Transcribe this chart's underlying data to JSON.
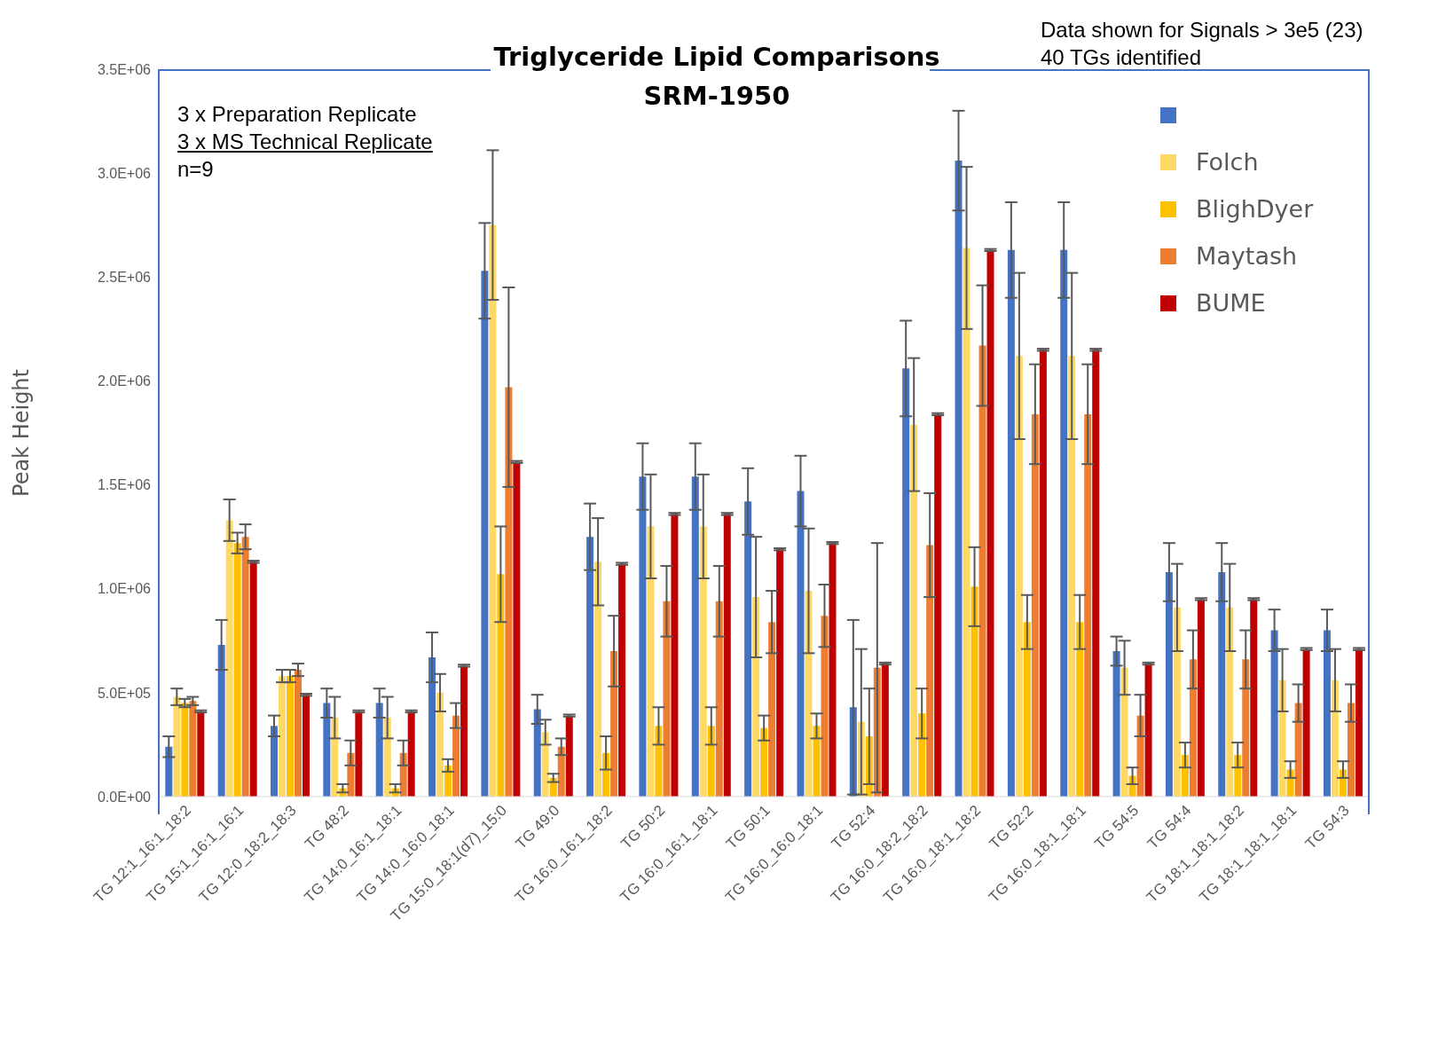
{
  "chart_data": {
    "type": "bar",
    "title": "Triglyceride Lipid Comparisons",
    "subtitle": "SRM-1950",
    "ylabel": "Peak Height",
    "annotations": [
      "3 x Preparation Replicate",
      "3 x MS Technical Replicate",
      "n=9",
      "Data shown for Signals > 3e5 (23)",
      "40 TGs identified"
    ],
    "categories": [
      "TG 12:1_16:1_18:2",
      "TG 15:1_16:1_16:1",
      "TG 12:0_18:2_18:3",
      "TG 48:2",
      "TG 14:0_16:1_18:1",
      "TG 14:0_16:0_18:1",
      "TG 15:0_18:1(d7)_15:0",
      "TG 49:0",
      "TG 16:0_16:1_18:2",
      "TG 50:2",
      "TG 16:0_16:1_18:1",
      "TG 50:1",
      "TG 16:0_16:0_18:1",
      "TG 52:4",
      "TG 16:0_18:2_18:2",
      "TG 16:0_18:1_18:2",
      "TG 52:2",
      "TG 16:0_18:1_18:1",
      "TG 54:5",
      "TG 54:4",
      "TG 18:1_18:1_18:2",
      "TG 18:1_18:1_18:1",
      "TG 54:3"
    ],
    "series": [
      {
        "color": "#4472c4",
        "values": [
          240000,
          730000,
          340000,
          450000,
          450000,
          670000,
          2530000,
          420000,
          1250000,
          1540000,
          1540000,
          1420000,
          1470000,
          430000,
          2060000,
          3060000,
          2630000,
          2630000,
          700000,
          1080000,
          1080000,
          800000,
          800000
        ],
        "errors": [
          50000,
          120000,
          50000,
          70000,
          70000,
          120000,
          230000,
          70000,
          160000,
          160000,
          160000,
          160000,
          170000,
          420000,
          230000,
          240000,
          230000,
          230000,
          70000,
          140000,
          140000,
          100000,
          100000
        ]
      },
      {
        "name": "Folch",
        "color": "#ffd966",
        "values": [
          480000,
          1330000,
          580000,
          380000,
          380000,
          500000,
          2750000,
          310000,
          1130000,
          1300000,
          1300000,
          960000,
          990000,
          360000,
          1790000,
          2640000,
          2120000,
          2120000,
          620000,
          910000,
          910000,
          560000,
          560000
        ],
        "errors": [
          40000,
          100000,
          30000,
          100000,
          100000,
          90000,
          360000,
          60000,
          210000,
          250000,
          250000,
          290000,
          300000,
          350000,
          320000,
          390000,
          400000,
          400000,
          130000,
          210000,
          210000,
          150000,
          150000
        ]
      },
      {
        "name": "BlighDyer",
        "color": "#ffc000",
        "values": [
          450000,
          1220000,
          580000,
          40000,
          40000,
          150000,
          1070000,
          90000,
          210000,
          340000,
          340000,
          330000,
          340000,
          290000,
          400000,
          1010000,
          840000,
          840000,
          100000,
          200000,
          200000,
          130000,
          130000
        ],
        "errors": [
          20000,
          50000,
          30000,
          20000,
          20000,
          30000,
          230000,
          20000,
          80000,
          90000,
          90000,
          60000,
          60000,
          230000,
          120000,
          190000,
          130000,
          130000,
          40000,
          60000,
          60000,
          40000,
          40000
        ]
      },
      {
        "name": "Maytash",
        "color": "#ed7d31",
        "values": [
          460000,
          1250000,
          610000,
          210000,
          210000,
          390000,
          1970000,
          240000,
          700000,
          940000,
          940000,
          840000,
          870000,
          620000,
          1210000,
          2170000,
          1840000,
          1840000,
          390000,
          660000,
          660000,
          450000,
          450000
        ],
        "errors": [
          20000,
          60000,
          30000,
          60000,
          60000,
          60000,
          480000,
          40000,
          170000,
          170000,
          170000,
          150000,
          150000,
          600000,
          250000,
          290000,
          240000,
          240000,
          100000,
          140000,
          140000,
          90000,
          90000
        ]
      },
      {
        "name": "BUME",
        "color": "#c00000",
        "values": [
          410000,
          1130000,
          490000,
          410000,
          410000,
          630000,
          1610000,
          390000,
          1120000,
          1360000,
          1360000,
          1190000,
          1220000,
          640000,
          1840000,
          2630000,
          2150000,
          2150000,
          640000,
          950000,
          950000,
          710000,
          710000
        ],
        "errors": [
          5000,
          5000,
          5000,
          5000,
          5000,
          5000,
          5000,
          5000,
          5000,
          5000,
          5000,
          5000,
          5000,
          5000,
          5000,
          5000,
          5000,
          5000,
          5000,
          5000,
          5000,
          5000,
          5000
        ]
      }
    ],
    "ylim": [
      0,
      3500000
    ],
    "yticks": [
      {
        "value": 0,
        "label": "0.0E+00"
      },
      {
        "value": 500000,
        "label": "5.0E+05"
      },
      {
        "value": 1000000,
        "label": "1.0E+06"
      },
      {
        "value": 1500000,
        "label": "1.5E+06"
      },
      {
        "value": 2000000,
        "label": "2.0E+06"
      },
      {
        "value": 2500000,
        "label": "2.5E+06"
      },
      {
        "value": 3000000,
        "label": "3.0E+06"
      },
      {
        "value": 3500000,
        "label": "3.5E+06"
      }
    ],
    "grid": false,
    "legend": "top right"
  }
}
